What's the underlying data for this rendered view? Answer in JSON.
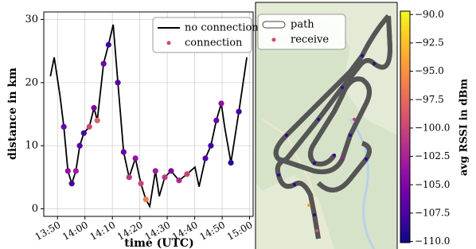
{
  "chart_data": [
    {
      "type": "line",
      "xlabel": "time (UTC)",
      "ylabel": "distance in km",
      "xlim": [
        825,
        901.3
      ],
      "ylim": [
        -1.2,
        31.2
      ],
      "xticks": [
        {
          "value": 830,
          "label": "13:50"
        },
        {
          "value": 840,
          "label": "14:00"
        },
        {
          "value": 850,
          "label": "14:10"
        },
        {
          "value": 860,
          "label": "14:20"
        },
        {
          "value": 870,
          "label": "14:30"
        },
        {
          "value": 880,
          "label": "14:40"
        },
        {
          "value": 890,
          "label": "14:50"
        },
        {
          "value": 900,
          "label": "15:00"
        }
      ],
      "yticks": [
        0,
        10,
        20,
        30
      ],
      "grid": true,
      "legend": "upper right",
      "series": [
        {
          "name": "no connection",
          "color": "#000000",
          "x": [
            827.4,
            828.8,
            830.9,
            832.3,
            833.8,
            835.2,
            836.7,
            838.1,
            839.6,
            841.6,
            843.3,
            844.5,
            846.8,
            848.6,
            850.3,
            852.0,
            854.1,
            856.1,
            858.4,
            860.4,
            862.2,
            863.6,
            865.7,
            867.1,
            869.1,
            871.4,
            874.3,
            877.2,
            880.1,
            881.6,
            883.9,
            885.9,
            887.9,
            889.7,
            890.9,
            893.2,
            896.1,
            899.0
          ],
          "values": [
            21,
            24,
            18,
            13,
            6,
            4,
            6,
            10,
            12,
            13,
            16,
            14,
            23,
            26,
            29.2,
            20,
            9,
            5,
            8,
            4,
            1.5,
            0.4,
            6,
            2,
            5,
            6,
            4.5,
            5.5,
            6.6,
            3.5,
            8,
            10,
            14,
            16.7,
            13,
            7.3,
            15.4,
            24
          ]
        },
        {
          "name": "connection",
          "color": "#cc4778",
          "x": [
            832.3,
            833.8,
            835.2,
            836.7,
            838.1,
            839.6,
            841.6,
            843.3,
            844.5,
            846.8,
            848.6,
            852.0,
            854.1,
            856.1,
            858.4,
            860.4,
            862.2,
            865.7,
            869.1,
            871.4,
            874.3,
            877.2,
            883.9,
            885.9,
            887.9,
            889.7,
            893.2,
            896.1
          ],
          "values": [
            13,
            6,
            4,
            6,
            10,
            12,
            13,
            16,
            14,
            23,
            26,
            20,
            9,
            5,
            8,
            4,
            1.5,
            6,
            5,
            6,
            4.5,
            5.5,
            8,
            10,
            14,
            16.7,
            7.3,
            15.4
          ],
          "rssi": [
            -106,
            -104,
            -108,
            -103,
            -107,
            -108,
            -100,
            -105,
            -98,
            -106,
            -108,
            -107,
            -106,
            -101,
            -104,
            -100,
            -96,
            -103,
            -101,
            -105,
            -102,
            -100,
            -107,
            -108,
            -106,
            -104,
            -109,
            -108
          ]
        }
      ]
    },
    {
      "type": "map",
      "legend": "upper left",
      "series": [
        {
          "name": "path",
          "color": "#ffffff"
        },
        {
          "name": "receive",
          "color": "#cc4778"
        }
      ],
      "colorbar": {
        "label": "avg RSSI in dBm",
        "clim": [
          -110.1,
          -89.7
        ],
        "ticks": [
          {
            "value": -90,
            "label": "−90.0"
          },
          {
            "value": -92.5,
            "label": "−92.5"
          },
          {
            "value": -95,
            "label": "−95.0"
          },
          {
            "value": -97.5,
            "label": "−97.5"
          },
          {
            "value": -100,
            "label": "−100.0"
          },
          {
            "value": -102.5,
            "label": "−102.5"
          },
          {
            "value": -105,
            "label": "−105.0"
          },
          {
            "value": -107.5,
            "label": "−107.5"
          },
          {
            "value": -110,
            "label": "−110.0"
          }
        ]
      }
    }
  ]
}
